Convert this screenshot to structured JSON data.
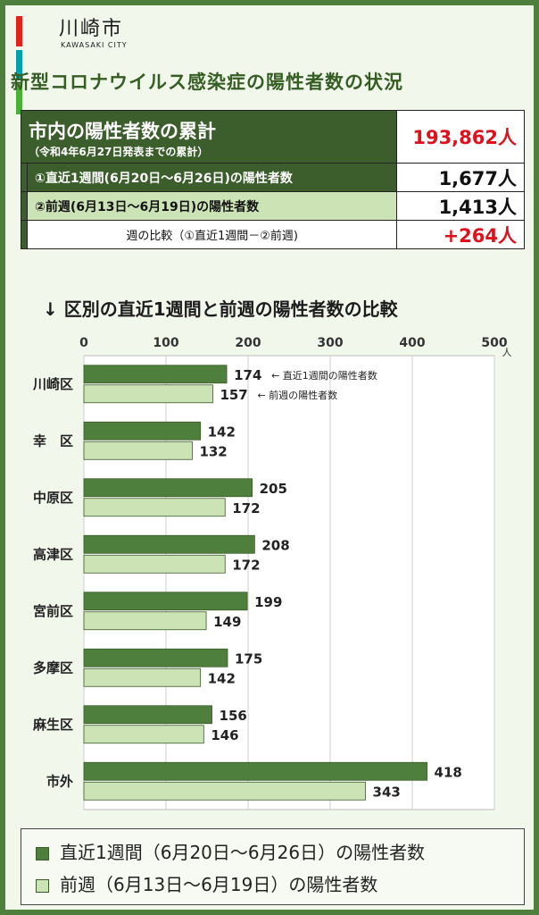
{
  "logo": {
    "title": "川崎市",
    "subtitle": "KAWASAKI CITY",
    "bar_colors": [
      "#e2231a",
      "#00a0b0",
      "#4ab035"
    ]
  },
  "main_title": "新型コロナウイルス感染症の陽性者数の状況",
  "summary": {
    "total_label": "市内の陽性者数の累計",
    "total_sub": "（令和4年6月27日発表までの累計）",
    "total_value": "193,862人",
    "row1_label": "①直近1週間(6月20日～6月26日)の陽性者数",
    "row1_value": "1,677人",
    "row2_label": "②前週(6月13日～6月19日)の陽性者数",
    "row2_value": "1,413人",
    "row3_label": "週の比較（①直近1週間－②前週)",
    "row3_value": "+264人"
  },
  "chart_title": "↓ 区別の直近1週間と前週の陽性者数の比較",
  "chart_data": {
    "type": "bar",
    "orientation": "horizontal",
    "categories": [
      "川崎区",
      "幸　区",
      "中原区",
      "高津区",
      "宮前区",
      "多摩区",
      "麻生区",
      "市外"
    ],
    "series": [
      {
        "name": "直近1週間（6月20日～6月26日）の陽性者数",
        "values": [
          174,
          142,
          205,
          208,
          199,
          175,
          156,
          418
        ],
        "color": "#4f7f3c"
      },
      {
        "name": "前週（6月13日～6月19日）の陽性者数",
        "values": [
          157,
          132,
          172,
          172,
          149,
          142,
          146,
          343
        ],
        "color": "#cce3b6"
      }
    ],
    "xlim": [
      0,
      500
    ],
    "xticks": [
      0,
      100,
      200,
      300,
      400,
      500
    ],
    "unit": "人",
    "grid": true,
    "annotations": [
      {
        "category": "川崎区",
        "series": 0,
        "text": "← 直近1週間の陽性者数"
      },
      {
        "category": "川崎区",
        "series": 1,
        "text": "← 前週の陽性者数"
      }
    ]
  },
  "legend": {
    "item1": "直近1週間（6月20日～6月26日）の陽性者数",
    "item2": "前週（6月13日～6月19日）の陽性者数",
    "item1_color": "#4f7f3c",
    "item2_color": "#cce3b6"
  }
}
